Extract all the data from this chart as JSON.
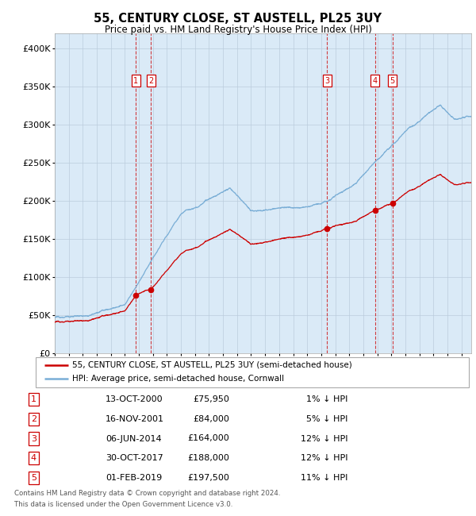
{
  "title": "55, CENTURY CLOSE, ST AUSTELL, PL25 3UY",
  "subtitle": "Price paid vs. HM Land Registry's House Price Index (HPI)",
  "legend_line1": "55, CENTURY CLOSE, ST AUSTELL, PL25 3UY (semi-detached house)",
  "legend_line2": "HPI: Average price, semi-detached house, Cornwall",
  "footer1": "Contains HM Land Registry data © Crown copyright and database right 2024.",
  "footer2": "This data is licensed under the Open Government Licence v3.0.",
  "red_line_color": "#cc0000",
  "blue_line_color": "#7aaed6",
  "band_color": "#daeaf7",
  "background_color": "#daeaf7",
  "grid_color": "#bbccdd",
  "ylim": [
    0,
    420000
  ],
  "yticks": [
    0,
    50000,
    100000,
    150000,
    200000,
    250000,
    300000,
    350000,
    400000
  ],
  "ytick_labels": [
    "£0",
    "£50K",
    "£100K",
    "£150K",
    "£200K",
    "£250K",
    "£300K",
    "£350K",
    "£400K"
  ],
  "xmin": 1995.0,
  "xmax": 2024.7,
  "transactions": [
    {
      "num": 1,
      "price": 75950,
      "x": 2000.78
    },
    {
      "num": 2,
      "price": 84000,
      "x": 2001.87
    },
    {
      "num": 3,
      "price": 164000,
      "x": 2014.43
    },
    {
      "num": 4,
      "price": 188000,
      "x": 2017.83
    },
    {
      "num": 5,
      "price": 197500,
      "x": 2019.08
    }
  ],
  "table_rows": [
    [
      "1",
      "13-OCT-2000",
      "£75,950",
      "1% ↓ HPI"
    ],
    [
      "2",
      "16-NOV-2001",
      "£84,000",
      "5% ↓ HPI"
    ],
    [
      "3",
      "06-JUN-2014",
      "£164,000",
      "12% ↓ HPI"
    ],
    [
      "4",
      "30-OCT-2017",
      "£188,000",
      "12% ↓ HPI"
    ],
    [
      "5",
      "01-FEB-2019",
      "£197,500",
      "11% ↓ HPI"
    ]
  ]
}
